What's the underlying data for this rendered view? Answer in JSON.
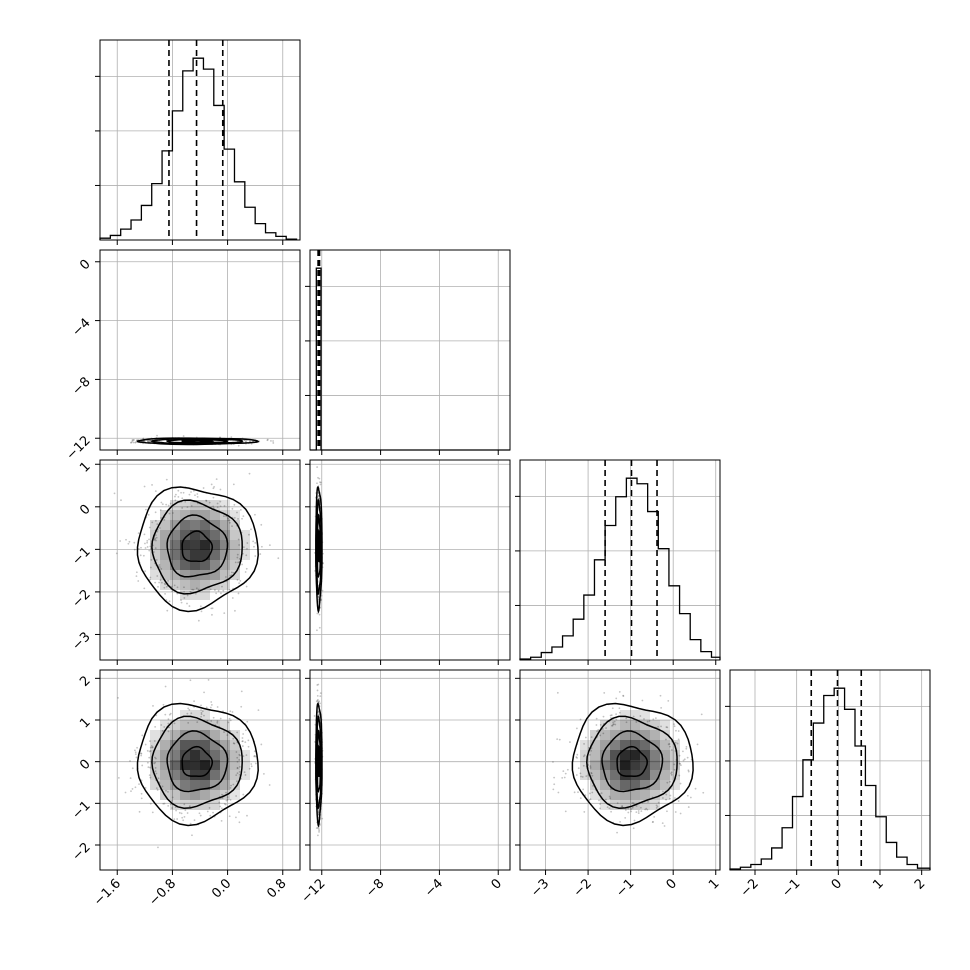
{
  "chart_data": {
    "type": "corner",
    "grid": true,
    "parameters": [
      {
        "index": 0,
        "range": [
          -1.85,
          1.05
        ],
        "ticks": [
          -1.6,
          -0.8,
          0.0,
          0.8
        ],
        "tick_labels": [
          "−1.6",
          "−0.8",
          "0.0",
          "0.8"
        ],
        "quantiles": [
          -0.85,
          -0.45,
          -0.07
        ]
      },
      {
        "index": 1,
        "range": [
          -12.8,
          0.8
        ],
        "ticks": [
          -12,
          -8,
          -4,
          0
        ],
        "tick_labels": [
          "−12",
          "−8",
          "−4",
          "0"
        ],
        "quantiles": [
          -12.25,
          -12.2,
          -12.15
        ]
      },
      {
        "index": 2,
        "range": [
          -3.6,
          1.1
        ],
        "ticks": [
          -3,
          -2,
          -1,
          0,
          1
        ],
        "tick_labels": [
          "−3",
          "−2",
          "−1",
          "0",
          "1"
        ],
        "quantiles": [
          -1.6,
          -0.98,
          -0.38
        ]
      },
      {
        "index": 3,
        "range": [
          -2.6,
          2.2
        ],
        "ticks": [
          -2,
          -1,
          0,
          1,
          2
        ],
        "tick_labels": [
          "−2",
          "−1",
          "0",
          "1",
          "2"
        ],
        "quantiles": [
          -0.65,
          -0.02,
          0.55
        ]
      }
    ],
    "histograms": [
      {
        "param": 0,
        "edges": [
          -1.85,
          -1.7,
          -1.55,
          -1.4,
          -1.25,
          -1.1,
          -0.95,
          -0.8,
          -0.65,
          -0.5,
          -0.35,
          -0.2,
          -0.05,
          0.1,
          0.25,
          0.4,
          0.55,
          0.7,
          0.85,
          1.0
        ],
        "counts": [
          2,
          5,
          12,
          22,
          38,
          62,
          98,
          142,
          186,
          200,
          188,
          148,
          100,
          64,
          36,
          18,
          8,
          4,
          1
        ]
      },
      {
        "param": 1,
        "edges": [
          -12.8,
          -12.37,
          -12.05,
          0.8
        ],
        "counts": [
          0,
          1000,
          0
        ]
      },
      {
        "param": 2,
        "edges": [
          -3.6,
          -3.35,
          -3.1,
          -2.85,
          -2.6,
          -2.35,
          -2.1,
          -1.85,
          -1.6,
          -1.35,
          -1.1,
          -0.85,
          -0.6,
          -0.35,
          -0.1,
          0.15,
          0.4,
          0.65,
          0.9,
          1.1
        ],
        "counts": [
          1,
          3,
          8,
          14,
          26,
          44,
          70,
          108,
          145,
          176,
          196,
          190,
          160,
          120,
          80,
          50,
          22,
          9,
          3
        ]
      },
      {
        "param": 3,
        "edges": [
          -2.6,
          -2.35,
          -2.1,
          -1.85,
          -1.6,
          -1.35,
          -1.1,
          -0.85,
          -0.6,
          -0.35,
          -0.1,
          0.15,
          0.4,
          0.65,
          0.9,
          1.15,
          1.4,
          1.65,
          1.9,
          2.2
        ],
        "counts": [
          1,
          3,
          6,
          12,
          24,
          46,
          80,
          120,
          160,
          190,
          198,
          175,
          135,
          92,
          58,
          30,
          14,
          6,
          2
        ]
      }
    ],
    "pairs": [
      {
        "x": 0,
        "y": 1,
        "center": [
          -0.45,
          -12.2
        ],
        "spread": [
          0.37,
          0.09
        ]
      },
      {
        "x": 0,
        "y": 2,
        "center": [
          -0.45,
          -0.95
        ],
        "spread": [
          0.37,
          0.6
        ]
      },
      {
        "x": 1,
        "y": 2,
        "center": [
          -12.2,
          -0.95
        ],
        "spread": [
          0.09,
          0.6
        ]
      },
      {
        "x": 0,
        "y": 3,
        "center": [
          -0.45,
          -0.02
        ],
        "spread": [
          0.37,
          0.6
        ]
      },
      {
        "x": 1,
        "y": 3,
        "center": [
          -12.2,
          -0.02
        ],
        "spread": [
          0.09,
          0.6
        ]
      },
      {
        "x": 2,
        "y": 3,
        "center": [
          -0.98,
          -0.02
        ],
        "spread": [
          0.6,
          0.6
        ]
      }
    ],
    "contour_levels_sigma": [
      0.5,
      1.0,
      1.5,
      2.0
    ],
    "colors": {
      "line": "#000000",
      "grid": "#b0b0b0",
      "density": "#000000",
      "points": "#555555"
    }
  }
}
